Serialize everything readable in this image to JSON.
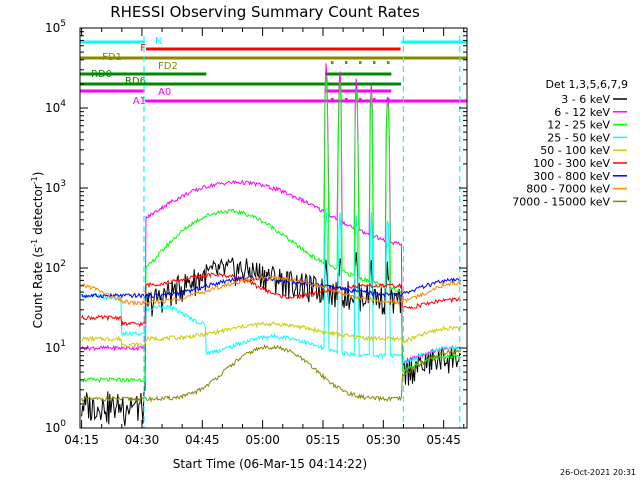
{
  "chart_data": {
    "type": "line",
    "title": "RHESSI Observing Summary Count Rates",
    "xlabel": "Start Time (06-Mar-15 04:14:22)",
    "ylabel_main": "Count Rate (s",
    "ylabel_sup1": "-1",
    "ylabel_mid": " detector",
    "ylabel_sup2": "-1",
    "ylabel_end": ")",
    "y_scale": "log",
    "ylim": [
      1,
      100000
    ],
    "xlim_minutes": [
      -0.4,
      95.8
    ],
    "x_ticks": [
      {
        "label": "04:15",
        "minute": 0
      },
      {
        "label": "04:30",
        "minute": 15
      },
      {
        "label": "04:45",
        "minute": 30
      },
      {
        "label": "05:00",
        "minute": 45
      },
      {
        "label": "05:15",
        "minute": 60
      },
      {
        "label": "05:30",
        "minute": 75
      },
      {
        "label": "05:45",
        "minute": 90
      }
    ],
    "y_ticks": [
      {
        "base": "10",
        "exp": "0",
        "value": 1
      },
      {
        "base": "10",
        "exp": "1",
        "value": 10
      },
      {
        "base": "10",
        "exp": "2",
        "value": 100
      },
      {
        "base": "10",
        "exp": "3",
        "value": 1000
      },
      {
        "base": "10",
        "exp": "4",
        "value": 10000
      },
      {
        "base": "10",
        "exp": "5",
        "value": 100000
      }
    ],
    "legend_title": "Det 1,3,5,6,7,9",
    "legend_placement": "right",
    "series": [
      {
        "name": "3 - 6 keV",
        "color": "#000000"
      },
      {
        "name": "6 - 12 keV",
        "color": "#ff00ff"
      },
      {
        "name": "12 - 25 keV",
        "color": "#00ff00"
      },
      {
        "name": "25 - 50 keV",
        "color": "#00ffff"
      },
      {
        "name": "50 - 100 keV",
        "color": "#cccc00"
      },
      {
        "name": "100 - 300 keV",
        "color": "#ff0000"
      },
      {
        "name": "300 - 800 keV",
        "color": "#0000ff"
      },
      {
        "name": "800 - 7000 keV",
        "color": "#ff8800"
      },
      {
        "name": "7000 - 15000 keV",
        "color": "#888800"
      }
    ],
    "flag_bars": [
      {
        "label": "N",
        "color": "#00ffff",
        "segments": [
          [
            -2,
            15.7
          ],
          [
            79.5,
            95.8
          ]
        ]
      },
      {
        "label": "F",
        "color": "#ff0000",
        "segments": [
          [
            16,
            79.3
          ]
        ]
      },
      {
        "label": "FD1",
        "color": "#888800",
        "segments": [
          [
            -2,
            95.8
          ]
        ]
      },
      {
        "label": "FD2",
        "color": "#888800",
        "segments": [
          [
            60.5,
            77
          ]
        ],
        "dotted": true
      },
      {
        "label": "RD0",
        "color": "#008800",
        "segments": [
          [
            -2,
            31
          ],
          [
            60.5,
            77
          ]
        ]
      },
      {
        "label": "RD6",
        "color": "#008800",
        "segments": [
          [
            -2,
            79.4
          ]
        ]
      },
      {
        "label": "A0",
        "color": "#ff00ff",
        "segments": [
          [
            -2,
            15.7
          ],
          [
            60.5,
            77
          ]
        ],
        "dotted_part": true
      },
      {
        "label": "A1",
        "color": "#ff00ff",
        "segments": [
          [
            15.8,
            95.8
          ]
        ]
      }
    ],
    "vertical_markers_minutes": [
      15.5,
      80,
      94
    ],
    "timestamp": "26-Oct-2021 20:31"
  }
}
